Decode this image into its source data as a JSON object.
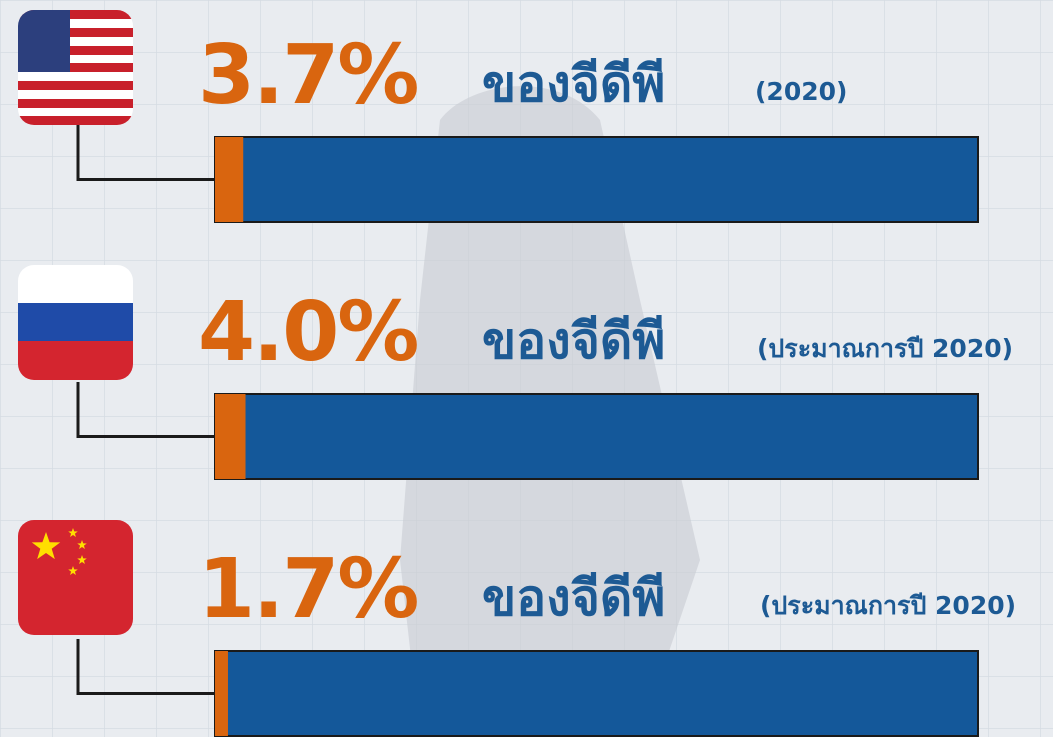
{
  "chart_data": {
    "type": "progress",
    "values": [
      3.7,
      4.0,
      1.7
    ],
    "value_labels": [
      "3.7%",
      "4.0%",
      "1.7%"
    ],
    "captions": [
      "ของจีดีพี",
      "ของจีดีพี",
      "ของจีดีพี"
    ],
    "notes": [
      "(2020)",
      "(ประมาณการปี 2020)",
      "(ประมาณการปี 2020)"
    ],
    "xlim": [
      0,
      100
    ],
    "color": "#d9650f",
    "track_color": "#14589a"
  }
}
